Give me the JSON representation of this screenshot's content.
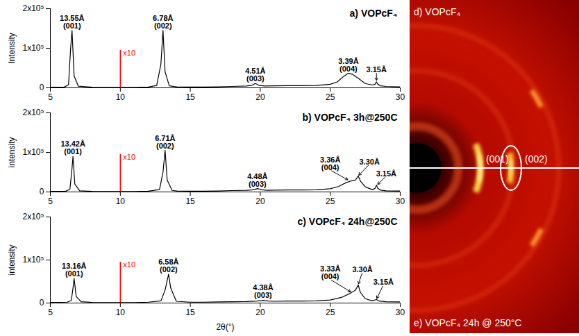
{
  "chart_data": [
    {
      "type": "line",
      "title": "a) VOPcF₄",
      "y_label": "Intensity",
      "xlim": [
        5,
        30
      ],
      "xticks": [
        5,
        10,
        15,
        20,
        25,
        30
      ],
      "ylim": [
        0,
        200000
      ],
      "yticks": [
        0,
        {
          "value": 100000,
          "label": "1x10⁵"
        },
        {
          "value": 200000,
          "label": "2x10⁵"
        }
      ],
      "grid": false,
      "color": "#000000",
      "x": [
        5,
        6.0,
        6.3,
        6.45,
        6.55,
        6.7,
        7.0,
        8,
        9,
        10,
        11,
        12,
        12.6,
        12.9,
        13.05,
        13.2,
        13.5,
        14,
        15,
        16,
        17,
        18,
        19,
        19.4,
        19.65,
        19.9,
        20.3,
        21,
        22,
        23,
        24,
        25,
        25.5,
        26.0,
        26.3,
        26.6,
        27.0,
        27.5,
        28.0,
        28.2,
        28.3,
        28.4,
        28.6,
        29,
        30
      ],
      "values": [
        1500,
        2000,
        8000,
        100000,
        145000,
        30000,
        4000,
        1500,
        1000,
        1000,
        1200,
        2000,
        6000,
        60000,
        145000,
        40000,
        5000,
        2500,
        2000,
        2000,
        2500,
        3500,
        4500,
        6500,
        11000,
        6500,
        4500,
        5000,
        5500,
        5500,
        6000,
        9000,
        15000,
        30000,
        37000,
        34000,
        24000,
        11000,
        7000,
        9000,
        15000,
        9000,
        5000,
        3500,
        2500
      ],
      "scale_mark": {
        "x": 10,
        "y": 95000,
        "label": "x10",
        "color": "#ff0000"
      },
      "annotations": [
        {
          "text": [
            "13.55Å",
            "(001)"
          ],
          "x": 6.55,
          "y": 150000
        },
        {
          "text": [
            "6.78Å",
            "(002)"
          ],
          "x": 13.05,
          "y": 150000
        },
        {
          "text": [
            "4.51Å",
            "(003)"
          ],
          "x": 19.65,
          "y": 16000
        },
        {
          "text": [
            "3.39Å",
            "(004)"
          ],
          "x": 26.3,
          "y": 42000
        },
        {
          "text": [
            "3.15Å"
          ],
          "x": 28.3,
          "y": 40000,
          "points_to": [
            28.3,
            17000
          ]
        }
      ]
    },
    {
      "type": "line",
      "title": "b) VOPcF₄ 3h@250C",
      "y_label": "intensity",
      "xlim": [
        5,
        30
      ],
      "xticks": [
        5,
        10,
        15,
        20,
        25,
        30
      ],
      "ylim": [
        0,
        200000
      ],
      "yticks": [
        0,
        {
          "value": 100000,
          "label": "1x10⁵"
        },
        {
          "value": 200000,
          "label": "2x10⁵"
        }
      ],
      "grid": false,
      "color": "#000000",
      "x": [
        5,
        6.1,
        6.4,
        6.55,
        6.62,
        6.75,
        7.1,
        8,
        9,
        10,
        11,
        12,
        12.8,
        13.05,
        13.2,
        13.35,
        13.7,
        14,
        15,
        16,
        17,
        18,
        19,
        19.5,
        19.8,
        20.1,
        20.5,
        21,
        22,
        23,
        24,
        25,
        25.6,
        26.1,
        26.5,
        26.8,
        27.0,
        27.15,
        27.5,
        28.0,
        28.2,
        28.3,
        28.4,
        28.6,
        29,
        30
      ],
      "values": [
        1500,
        2000,
        7000,
        60000,
        90000,
        20000,
        3000,
        1500,
        1000,
        1000,
        1200,
        2000,
        6000,
        50000,
        105000,
        30000,
        4000,
        2500,
        2000,
        2000,
        2500,
        3500,
        4000,
        5500,
        8500,
        5500,
        4000,
        4500,
        5000,
        5000,
        5500,
        8000,
        14000,
        23000,
        28000,
        30000,
        40000,
        28000,
        13000,
        6000,
        9000,
        17000,
        9000,
        4500,
        3000,
        2500
      ],
      "scale_mark": {
        "x": 10,
        "y": 95000,
        "label": "x10",
        "color": "#ff0000"
      },
      "annotations": [
        {
          "text": [
            "13.42Å",
            "(001)"
          ],
          "x": 6.62,
          "y": 95000
        },
        {
          "text": [
            "6.71Å",
            "(002)"
          ],
          "x": 13.2,
          "y": 110000
        },
        {
          "text": [
            "4.48Å",
            "(003)"
          ],
          "x": 19.8,
          "y": 14000
        },
        {
          "text": [
            "3.36Å",
            "(004)"
          ],
          "x": 25.0,
          "y": 55000,
          "points_to": [
            26.3,
            30000
          ]
        },
        {
          "text": [
            "3.30Å"
          ],
          "x": 27.8,
          "y": 70000,
          "points_to": [
            27.0,
            41000
          ]
        },
        {
          "text": [
            "3.15Å"
          ],
          "x": 29.0,
          "y": 40000,
          "points_to": [
            28.35,
            18000
          ]
        }
      ]
    },
    {
      "type": "line",
      "title": "c) VOPcF₄ 24h@250C",
      "y_label": "intensity",
      "x_label": "2θ(°)",
      "xlim": [
        5,
        30
      ],
      "xticks": [
        5,
        10,
        15,
        20,
        25,
        30
      ],
      "ylim": [
        0,
        200000
      ],
      "yticks": [
        0,
        {
          "value": 100000,
          "label": "1x10⁵"
        },
        {
          "value": 200000,
          "label": "2x10⁵"
        }
      ],
      "grid": false,
      "color": "#000000",
      "x": [
        5,
        6.2,
        6.5,
        6.62,
        6.7,
        6.85,
        7.2,
        8,
        9,
        10,
        11,
        12,
        12.9,
        13.2,
        13.45,
        13.6,
        14,
        15,
        16,
        17,
        18,
        19,
        19.8,
        20.2,
        20.6,
        21,
        22,
        23,
        24,
        25,
        25.8,
        26.4,
        26.8,
        27.0,
        27.15,
        27.5,
        28.0,
        28.3,
        28.5,
        29,
        30
      ],
      "values": [
        1500,
        2000,
        6000,
        35000,
        57000,
        15000,
        3000,
        1500,
        1000,
        1000,
        1200,
        2000,
        5000,
        30000,
        67000,
        35000,
        4000,
        2000,
        2000,
        2500,
        3000,
        3500,
        4500,
        6000,
        4500,
        4000,
        4500,
        4500,
        5000,
        7000,
        13000,
        22000,
        30000,
        42000,
        25000,
        10000,
        5000,
        8000,
        4500,
        3000,
        2500
      ],
      "scale_mark": {
        "x": 10,
        "y": 95000,
        "label": "x10",
        "color": "#ff0000"
      },
      "annotations": [
        {
          "text": [
            "13.16Å",
            "(001)"
          ],
          "x": 6.7,
          "y": 62000
        },
        {
          "text": [
            "6.58Å",
            "(002)"
          ],
          "x": 13.45,
          "y": 72000
        },
        {
          "text": [
            "4.38Å",
            "(003)"
          ],
          "x": 20.2,
          "y": 12000
        },
        {
          "text": [
            "3.33Å",
            "(004)"
          ],
          "x": 25.0,
          "y": 55000,
          "points_to": [
            26.5,
            25000
          ]
        },
        {
          "text": [
            "3.30Å"
          ],
          "x": 27.3,
          "y": 72000,
          "points_to": [
            27.0,
            43000
          ]
        },
        {
          "text": [
            "3.15Å"
          ],
          "x": 28.8,
          "y": 42000,
          "points_to": [
            28.3,
            9000
          ]
        }
      ]
    }
  ],
  "image": {
    "panel_labels": [
      "d) VOPcF₄",
      "e) VOPcF₄ 24h @ 250°C"
    ],
    "ring_labels": [
      "(001)",
      "(002)"
    ]
  }
}
